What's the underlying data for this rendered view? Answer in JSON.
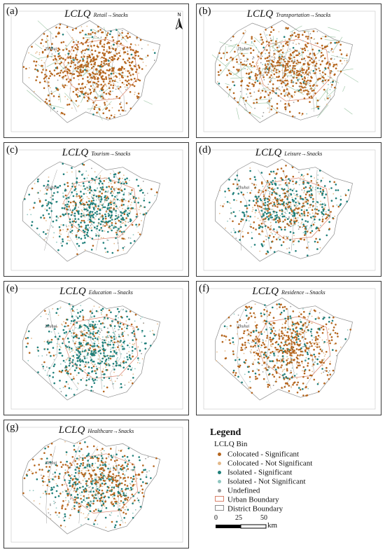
{
  "panels": [
    {
      "label": "(a)",
      "title_main": "LCLQ",
      "title_sub": "Retail→Snacks",
      "has_north": true,
      "city_label": "Zhuhai"
    },
    {
      "label": "(b)",
      "title_main": "LCLQ",
      "title_sub": "Transportation→Snacks",
      "has_north": false,
      "city_label": "Zhuhai"
    },
    {
      "label": "(c)",
      "title_main": "LCLQ",
      "title_sub": "Tourism→Snacks",
      "has_north": false,
      "city_label": "Zhuhai"
    },
    {
      "label": "(d)",
      "title_main": "LCLQ",
      "title_sub": "Leisure→Snacks",
      "has_north": false,
      "city_label": "Zhuhai"
    },
    {
      "label": "(e)",
      "title_main": "LCLQ",
      "title_sub": "Education→Snacks",
      "has_north": false,
      "city_label": "Zhuhai"
    },
    {
      "label": "(f)",
      "title_main": "LCLQ",
      "title_sub": "Residence→Snacks",
      "has_north": false,
      "city_label": "Zhuhai"
    },
    {
      "label": "(g)",
      "title_main": "LCLQ",
      "title_sub": "Healthcare→Snacks",
      "has_north": false,
      "city_label": "Zhuhai"
    }
  ],
  "north_label": "N",
  "legend": {
    "title": "Legend",
    "subtitle": "LCLQ Bin",
    "items": [
      {
        "label": "Colocated - Significant",
        "symbol": "dot",
        "color": "#b5651d"
      },
      {
        "label": "Colocated - Not Significant",
        "symbol": "dot",
        "color": "#e3b98a"
      },
      {
        "label": "Isolated - Significant",
        "symbol": "dot",
        "color": "#1f7f7a"
      },
      {
        "label": "Isolated - Not Significant",
        "symbol": "dot",
        "color": "#8fc6c0"
      },
      {
        "label": "Undefined",
        "symbol": "dot",
        "color": "#9a9a9a"
      },
      {
        "label": "Urban Boundary",
        "symbol": "box",
        "color": "#d9826a"
      },
      {
        "label": "District Boundary",
        "symbol": "box",
        "color": "#8c8c8c"
      }
    ],
    "scale": {
      "ticks": [
        "0",
        "25",
        "50"
      ],
      "unit": "km"
    }
  },
  "colors": {
    "colocated_sig": "#b5651d",
    "colocated_ns": "#e3b98a",
    "isolated_sig": "#1f7f7a",
    "isolated_ns": "#8fc6c0",
    "undefined": "#9a9a9a",
    "urban_boundary": "#d9826a",
    "district_boundary": "#8c8c8c",
    "road": "#7fb58a"
  }
}
